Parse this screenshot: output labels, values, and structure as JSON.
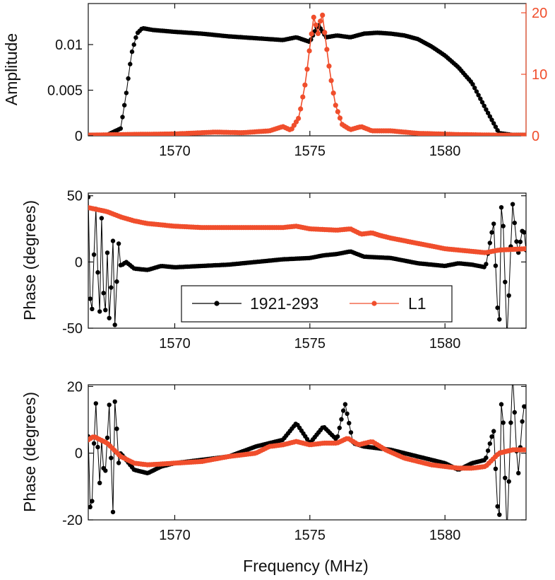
{
  "colors": {
    "series_1921": "#000000",
    "series_L1": "#f04e2c",
    "axis": "#111111"
  },
  "legend": {
    "entries": [
      "1921-293",
      "L1"
    ]
  },
  "shared_xlabel": "Frequency (MHz)",
  "chart_data": [
    {
      "id": "amplitude",
      "type": "line",
      "ylabel": "Amplitude",
      "xlim": [
        1566.8,
        1583.0
      ],
      "ylim": [
        0,
        0.0145
      ],
      "y2lim": [
        0,
        21.5
      ],
      "xticks": [
        1570,
        1575,
        1580
      ],
      "yticks": [
        0,
        0.005,
        0.01
      ],
      "ytick_labels": [
        "0",
        "0.005",
        "0.01"
      ],
      "y2ticks": [
        0,
        10,
        20
      ],
      "y2tick_labels": [
        "0",
        "10",
        "20"
      ],
      "series": [
        {
          "name": "1921-293",
          "axis": "left",
          "x": [
            1566.8,
            1567.5,
            1568.0,
            1568.2,
            1568.4,
            1568.6,
            1568.8,
            1569.2,
            1570.0,
            1571.0,
            1572.0,
            1573.0,
            1574.0,
            1574.5,
            1575.0,
            1575.3,
            1575.6,
            1576.0,
            1576.5,
            1577.0,
            1577.5,
            1578.0,
            1578.5,
            1579.0,
            1579.5,
            1580.0,
            1580.5,
            1581.0,
            1581.5,
            1582.0,
            1582.5,
            1583.0
          ],
          "values": [
            0.0001,
            0.0001,
            0.0008,
            0.0045,
            0.009,
            0.0112,
            0.0118,
            0.0116,
            0.0114,
            0.0112,
            0.0109,
            0.0107,
            0.0105,
            0.0108,
            0.0103,
            0.0122,
            0.0108,
            0.011,
            0.0108,
            0.0112,
            0.0113,
            0.0112,
            0.011,
            0.0106,
            0.0098,
            0.0088,
            0.0075,
            0.0058,
            0.003,
            0.0003,
            0.0001,
            0.0001
          ]
        },
        {
          "name": "L1",
          "axis": "right",
          "x": [
            1566.8,
            1568.0,
            1570.0,
            1571.5,
            1572.5,
            1573.5,
            1574.0,
            1574.3,
            1574.6,
            1574.85,
            1575.0,
            1575.15,
            1575.3,
            1575.45,
            1575.6,
            1575.75,
            1575.95,
            1576.2,
            1576.5,
            1576.9,
            1577.3,
            1578.0,
            1579.0,
            1580.5,
            1582.0,
            1583.0
          ],
          "values": [
            0.1,
            0.2,
            0.3,
            0.6,
            0.5,
            0.8,
            1.5,
            0.9,
            3.0,
            9.0,
            14.5,
            19.5,
            16.5,
            20.2,
            15.0,
            10.0,
            5.0,
            1.8,
            1.0,
            1.5,
            0.8,
            0.8,
            0.4,
            0.2,
            0.1,
            0.1
          ]
        }
      ]
    },
    {
      "id": "phase_1",
      "type": "line",
      "ylabel": "Phase (degrees)",
      "xlim": [
        1566.8,
        1583.0
      ],
      "ylim": [
        -50,
        52
      ],
      "xticks": [
        1570,
        1575,
        1580
      ],
      "yticks": [
        -50,
        0,
        50
      ],
      "ytick_labels": [
        "-50",
        "0",
        "50"
      ],
      "series": [
        {
          "name": "1921-293",
          "x": [
            1566.8,
            1566.9,
            1567.0,
            1567.1,
            1567.2,
            1567.3,
            1567.4,
            1567.5,
            1567.6,
            1567.7,
            1567.8,
            1567.9,
            1568.0,
            1568.2,
            1568.5,
            1569.0,
            1569.5,
            1570.0,
            1571.0,
            1572.0,
            1573.0,
            1574.0,
            1575.0,
            1575.5,
            1576.0,
            1576.5,
            1577.0,
            1578.0,
            1579.0,
            1580.0,
            1580.5,
            1581.0,
            1581.5,
            1581.8,
            1582.0,
            1582.1,
            1582.3,
            1582.5,
            1582.7,
            1582.9,
            1583.0
          ],
          "values": [
            49,
            -60,
            0,
            49,
            -60,
            40,
            -60,
            10,
            -60,
            30,
            -60,
            20,
            -3,
            0,
            -5,
            -6,
            -3,
            -4,
            -3,
            -2,
            0,
            2,
            3,
            5,
            6,
            8,
            4,
            3,
            -1,
            -3,
            -1,
            -2,
            -4,
            30,
            -60,
            60,
            -60,
            45,
            5,
            28,
            9
          ]
        },
        {
          "name": "L1",
          "x": [
            1566.8,
            1567.5,
            1568.0,
            1568.5,
            1569.0,
            1570.0,
            1571.0,
            1572.0,
            1573.0,
            1574.0,
            1574.5,
            1575.0,
            1576.0,
            1576.5,
            1576.9,
            1577.3,
            1577.6,
            1578.0,
            1579.0,
            1580.0,
            1580.5,
            1581.0,
            1581.5,
            1582.0,
            1583.0
          ],
          "values": [
            41,
            38,
            34,
            31,
            29,
            27,
            26,
            26,
            26,
            26,
            27,
            25,
            24,
            25,
            21,
            22,
            20,
            18,
            14,
            10,
            9,
            8,
            7,
            9,
            10
          ]
        }
      ]
    },
    {
      "id": "phase_2",
      "type": "line",
      "ylabel": "Phase (degrees)",
      "xlabel": "Frequency (MHz)",
      "xlim": [
        1566.8,
        1583.0
      ],
      "ylim": [
        -20,
        20.5
      ],
      "xticks": [
        1570,
        1575,
        1580
      ],
      "yticks": [
        -20,
        0,
        20
      ],
      "ytick_labels": [
        "-20",
        "0",
        "20"
      ],
      "series": [
        {
          "name": "1921-293",
          "x": [
            1566.8,
            1566.9,
            1567.0,
            1567.1,
            1567.2,
            1567.3,
            1567.4,
            1567.5,
            1567.6,
            1567.7,
            1567.8,
            1567.9,
            1568.0,
            1568.5,
            1569.0,
            1569.5,
            1570.0,
            1571.0,
            1572.0,
            1573.0,
            1574.0,
            1574.5,
            1575.0,
            1575.5,
            1576.0,
            1576.3,
            1576.6,
            1577.0,
            1578.0,
            1579.0,
            1580.0,
            1580.5,
            1581.0,
            1581.5,
            1581.8,
            1582.0,
            1582.1,
            1582.3,
            1582.5,
            1582.7,
            1582.9,
            1583.0
          ],
          "values": [
            5,
            -25,
            1,
            18,
            -13,
            5,
            -10,
            4,
            18,
            -25,
            22,
            -4,
            0,
            -5,
            -6,
            -4,
            -3,
            -2,
            -1,
            2,
            4,
            9,
            3,
            8,
            4,
            15,
            3,
            2,
            1,
            -1,
            -3,
            -5,
            -3,
            -2,
            7,
            -25,
            22,
            -25,
            25,
            -8,
            14,
            14
          ]
        },
        {
          "name": "L1",
          "x": [
            1566.8,
            1567.0,
            1567.5,
            1568.0,
            1568.5,
            1569.0,
            1570.0,
            1571.0,
            1572.0,
            1573.0,
            1573.5,
            1574.0,
            1574.5,
            1575.0,
            1575.5,
            1576.0,
            1576.4,
            1576.8,
            1577.3,
            1577.8,
            1578.5,
            1579.5,
            1580.5,
            1581.0,
            1581.5,
            1582.0,
            1582.5,
            1583.0
          ],
          "values": [
            4,
            5,
            3,
            -1,
            -3,
            -3.5,
            -3,
            -2.5,
            -1,
            0,
            2,
            2.5,
            3.5,
            2.5,
            3,
            3,
            4.5,
            2.5,
            3.5,
            1,
            -1.5,
            -3.5,
            -4.5,
            -4.5,
            -4,
            0,
            1,
            1
          ]
        }
      ]
    }
  ]
}
